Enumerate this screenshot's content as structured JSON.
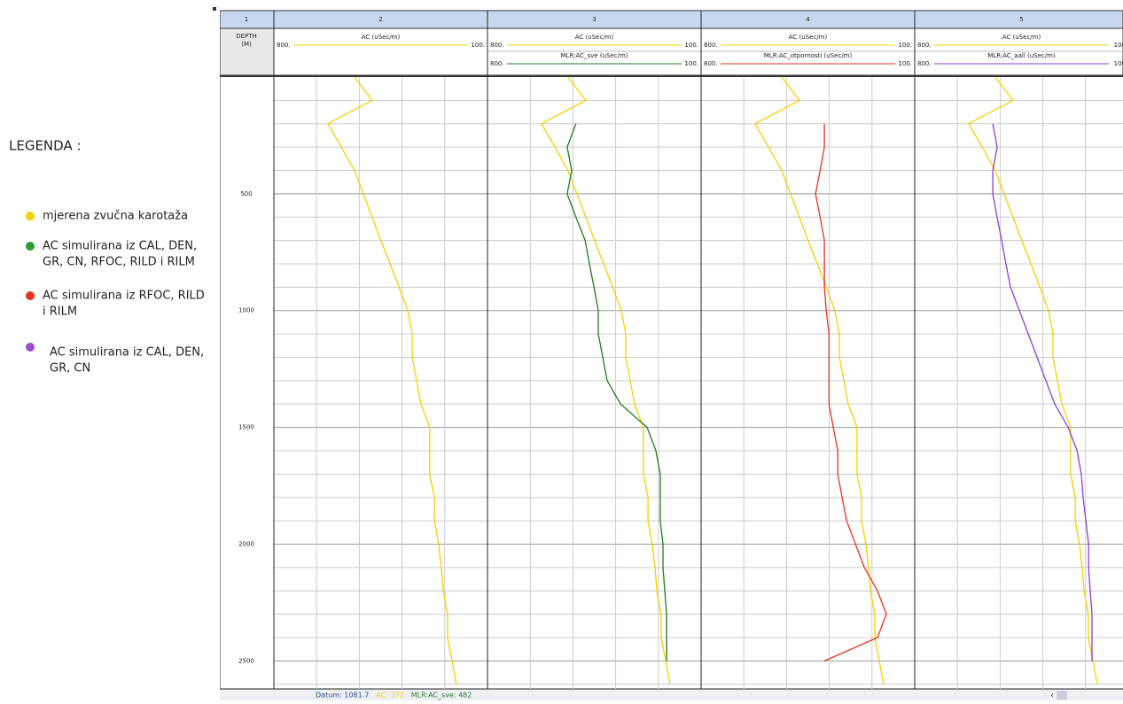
{
  "legend": {
    "title": "LEGENDA :",
    "items": [
      {
        "color": "#f5d000",
        "lines": [
          "mjerena zvučna karotaža"
        ]
      },
      {
        "color": "#2e9b2e",
        "lines": [
          "AC simulirana iz CAL, DEN,",
          "GR, CN, RFOC, RILD i RILM"
        ]
      },
      {
        "color": "#e8321e",
        "lines": [
          "AC simulirana iz RFOC, RILD",
          "i RILM"
        ]
      },
      {
        "color": "#9a4fc8",
        "lines": [
          "AC simulirana iz CAL, DEN,",
          "GR, CN"
        ]
      }
    ]
  },
  "depth_track": {
    "number": "1",
    "title": "DEPTH",
    "unit": "(M)",
    "ticks": [
      500,
      1000,
      1500,
      2000,
      2500
    ]
  },
  "depth_range": [
    0,
    2620
  ],
  "depths": [
    0,
    100,
    200,
    300,
    400,
    500,
    600,
    700,
    800,
    900,
    1000,
    1100,
    1200,
    1300,
    1400,
    1500,
    1600,
    1700,
    1800,
    1900,
    2000,
    2100,
    2200,
    2300,
    2400,
    2500,
    2600
  ],
  "scale_ticks": [
    800,
    660,
    520,
    380,
    240,
    100
  ],
  "tracks": [
    {
      "number": "2",
      "curves": [
        {
          "label": "AC (uSec/m)",
          "color": "#f5d000",
          "left": {
            "value": 800,
            "label": "800."
          },
          "right": {
            "value": 100,
            "label": "100."
          },
          "values": [
            536,
            478,
            623,
            579,
            536,
            507,
            478,
            449,
            419,
            390,
            361,
            347,
            347,
            332,
            318,
            289,
            289,
            289,
            274,
            274,
            260,
            251,
            245,
            231,
            231,
            216,
            202
          ]
        }
      ]
    },
    {
      "number": "3",
      "curves": [
        {
          "label": "AC (uSec/m)",
          "color": "#f5d000",
          "left": {
            "value": 800,
            "label": "800."
          },
          "right": {
            "value": 100,
            "label": "100."
          },
          "values": [
            536,
            478,
            623,
            579,
            536,
            507,
            478,
            449,
            419,
            390,
            361,
            347,
            347,
            332,
            318,
            289,
            289,
            289,
            274,
            274,
            260,
            251,
            245,
            231,
            231,
            216,
            202
          ]
        },
        {
          "label": "MLR:AC_sve (uSec/m)",
          "color": "#1f7a1f",
          "left": {
            "value": 800,
            "label": "800."
          },
          "right": {
            "value": 100,
            "label": "100."
          },
          "values": [
            null,
            null,
            510,
            539,
            524,
            539,
            510,
            480,
            466,
            451,
            437,
            437,
            422,
            408,
            364,
            277,
            248,
            234,
            234,
            234,
            225,
            225,
            219,
            213,
            213,
            213,
            null
          ]
        }
      ]
    },
    {
      "number": "4",
      "curves": [
        {
          "label": "AC (uSec/m)",
          "color": "#f5d000",
          "left": {
            "value": 800,
            "label": "800."
          },
          "right": {
            "value": 100,
            "label": "100."
          },
          "values": [
            536,
            478,
            623,
            579,
            536,
            507,
            478,
            449,
            419,
            390,
            361,
            347,
            347,
            332,
            318,
            289,
            289,
            289,
            274,
            274,
            260,
            251,
            245,
            231,
            231,
            216,
            202
          ]
        },
        {
          "label": "MLR:AC_otpornosti (uSec/m)",
          "color": "#e8321e",
          "left": {
            "value": 800,
            "label": "800."
          },
          "right": {
            "value": 100,
            "label": "100."
          },
          "values": [
            null,
            null,
            396,
            396,
            410,
            425,
            410,
            396,
            396,
            396,
            390,
            381,
            381,
            381,
            381,
            367,
            352,
            352,
            338,
            323,
            294,
            265,
            222,
            193,
            222,
            396,
            null
          ]
        }
      ]
    },
    {
      "number": "5",
      "curves": [
        {
          "label": "AC (uSec/m)",
          "color": "#f5d000",
          "left": {
            "value": 800,
            "label": "800."
          },
          "right": {
            "value": 100,
            "label": "100"
          },
          "values": [
            536,
            478,
            623,
            579,
            536,
            507,
            478,
            449,
            419,
            390,
            361,
            347,
            347,
            332,
            318,
            289,
            289,
            289,
            274,
            274,
            260,
            251,
            245,
            231,
            231,
            216,
            202
          ]
        },
        {
          "label": "MLR:AC_aall (uSec/m)",
          "color": "#8a3fd0",
          "left": {
            "value": 800,
            "label": "800."
          },
          "right": {
            "value": 100,
            "label": "100"
          },
          "values": [
            null,
            null,
            544,
            530,
            544,
            544,
            530,
            515,
            501,
            486,
            457,
            428,
            399,
            370,
            341,
            297,
            268,
            254,
            248,
            239,
            230,
            230,
            225,
            219,
            219,
            219,
            null
          ]
        }
      ]
    }
  ],
  "status": [
    {
      "text": "Datum: 1081.7",
      "color": "#2a4a8a"
    },
    {
      "text": "AC: 372",
      "color": "#f5d000"
    },
    {
      "text": "MLR:AC_sve: 482",
      "color": "#2e7a2e"
    }
  ]
}
